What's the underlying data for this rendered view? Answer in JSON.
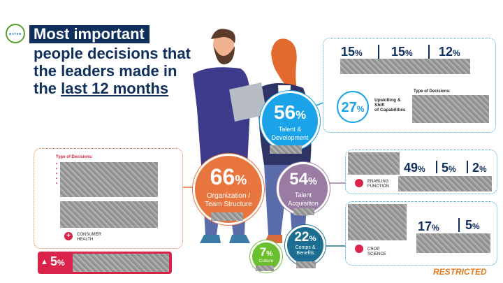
{
  "logo": {
    "text": "BAYER"
  },
  "title": {
    "highlight": "Most important",
    "line2": "people decisions that",
    "line3": "the leaders made in",
    "line4_prefix": "the ",
    "line4_underlined": "last 12 months"
  },
  "talent_development": {
    "value": "56",
    "unit": "%",
    "label_line1": "Talent &",
    "label_line2": "Development",
    "stats": [
      {
        "value": "15",
        "unit": "%"
      },
      {
        "value": "15",
        "unit": "%"
      },
      {
        "value": "12",
        "unit": "%"
      }
    ],
    "upskilling_value": "27",
    "upskilling_unit": "%",
    "upskilling_label_1": "Upskilling &",
    "upskilling_label_2": "Shift",
    "upskilling_label_3": "of Capabilities",
    "type_label": "Type of Decisions:"
  },
  "organization": {
    "value": "66",
    "unit": "%",
    "label_line1": "Organization /",
    "label_line2": "Team Structure",
    "type_label": "Type of Decisions:",
    "division_line1": "CONSUMER",
    "division_line2": "HEALTH",
    "warning_value": "5",
    "warning_unit": "%"
  },
  "talent_acquisition": {
    "value": "54",
    "unit": "%",
    "label_line1": "Talent",
    "label_line2": "Acquisition",
    "stats": [
      {
        "value": "49",
        "unit": "%"
      },
      {
        "value": "5",
        "unit": "%"
      },
      {
        "value": "2",
        "unit": "%"
      }
    ],
    "division_line1": "ENABLING",
    "division_line2": "FUNCTION"
  },
  "comps": {
    "value": "22",
    "unit": "%",
    "label_line1": "Comps &",
    "label_line2": "Benefits",
    "stats": [
      {
        "value": "17",
        "unit": "%"
      },
      {
        "value": "5",
        "unit": "%"
      }
    ],
    "division_line1": "CROP",
    "division_line2": "SCIENCE"
  },
  "culture": {
    "value": "7",
    "unit": "%",
    "label": "Culture"
  },
  "footer": {
    "restricted": "RESTRICTED"
  },
  "colors": {
    "navy": "#0f2f5c",
    "blue": "#1aa3e8",
    "orange": "#e8753e",
    "purple": "#9a7ca3",
    "teal": "#1c6f93",
    "green": "#6abf2e",
    "red": "#d9234a"
  }
}
